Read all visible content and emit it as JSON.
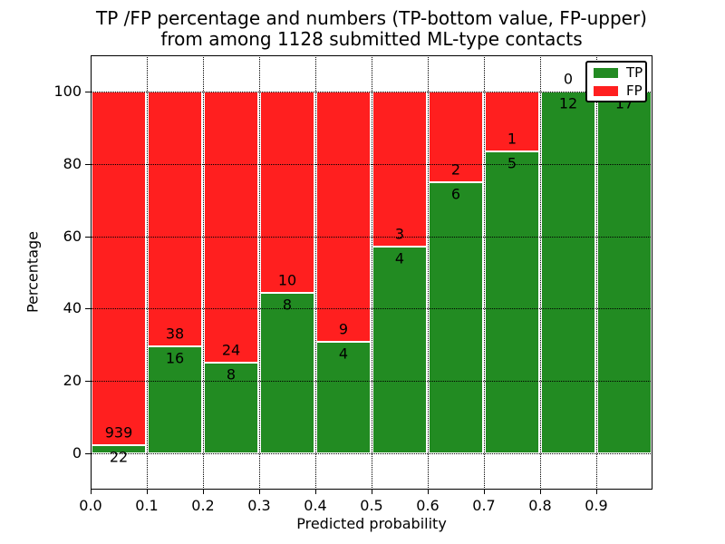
{
  "title": {
    "line1": "TP /FP percentage and numbers (TP-bottom value, FP-upper)",
    "line2": "from among 1128 submitted ML-type contacts"
  },
  "axes": {
    "xlabel": "Predicted probability",
    "ylabel": "Percentage"
  },
  "legend": {
    "position": "upper right",
    "entries": [
      {
        "label": "TP",
        "color": "#228B22"
      },
      {
        "label": "FP",
        "color": "#FF1F1F"
      }
    ]
  },
  "colors": {
    "tp_green": "#228B22",
    "fp_red": "#FF1F1F",
    "bar_edge": "#FFFFFF",
    "grid": "#000000",
    "background": "#FFFFFF"
  },
  "chart_data": {
    "type": "bar",
    "stacked": true,
    "normalized_to_percent": true,
    "title": "TP /FP percentage and numbers (TP-bottom value, FP-upper) from among 1128 submitted ML-type contacts",
    "xlabel": "Predicted probability",
    "ylabel": "Percentage",
    "total_submitted": 1128,
    "bin_width": 0.1,
    "categories": [
      "0.0-0.1",
      "0.1-0.2",
      "0.2-0.3",
      "0.3-0.4",
      "0.4-0.5",
      "0.5-0.6",
      "0.6-0.7",
      "0.7-0.8",
      "0.8-0.9",
      "0.9-1.0"
    ],
    "series": [
      {
        "name": "TP",
        "color": "#228B22",
        "counts": [
          22,
          16,
          8,
          8,
          4,
          4,
          6,
          5,
          12,
          17
        ]
      },
      {
        "name": "FP",
        "color": "#FF1F1F",
        "counts": [
          939,
          38,
          24,
          10,
          9,
          3,
          2,
          1,
          0,
          0
        ]
      }
    ],
    "tp_percent": [
      2.3,
      29.6,
      25.0,
      44.4,
      30.8,
      57.1,
      75.0,
      83.3,
      100.0,
      100.0
    ],
    "xticks": [
      "0.0",
      "0.1",
      "0.2",
      "0.3",
      "0.4",
      "0.5",
      "0.6",
      "0.7",
      "0.8",
      "0.9"
    ],
    "yticks": [
      0,
      20,
      40,
      60,
      80,
      100
    ],
    "xlim": [
      0.0,
      1.0
    ],
    "ylim": [
      -10,
      110
    ],
    "grid": "dotted",
    "legend_position": "upper right",
    "fp_label_visible": [
      true,
      true,
      true,
      true,
      true,
      true,
      true,
      true,
      true,
      false
    ],
    "tp_label_visible": [
      true,
      true,
      true,
      true,
      true,
      true,
      true,
      true,
      true,
      true
    ]
  }
}
